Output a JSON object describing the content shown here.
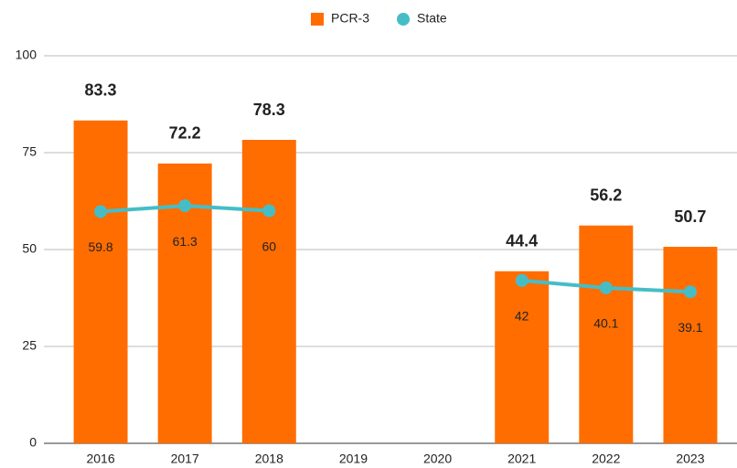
{
  "chart_data": {
    "type": "bar",
    "categories": [
      "2016",
      "2017",
      "2018",
      "2019",
      "2020",
      "2021",
      "2022",
      "2023"
    ],
    "series": [
      {
        "name": "PCR-3",
        "type": "bar",
        "color": "#ff6d01",
        "values": [
          83.3,
          72.2,
          78.3,
          null,
          null,
          44.4,
          56.2,
          50.7
        ]
      },
      {
        "name": "State",
        "type": "line",
        "color": "#46bdc6",
        "values": [
          59.8,
          61.3,
          60,
          null,
          null,
          42,
          40.1,
          39.1
        ]
      }
    ],
    "ylim": [
      0,
      100
    ],
    "yticks": [
      0,
      25,
      50,
      75,
      100
    ],
    "grid": true,
    "legend": "top"
  }
}
